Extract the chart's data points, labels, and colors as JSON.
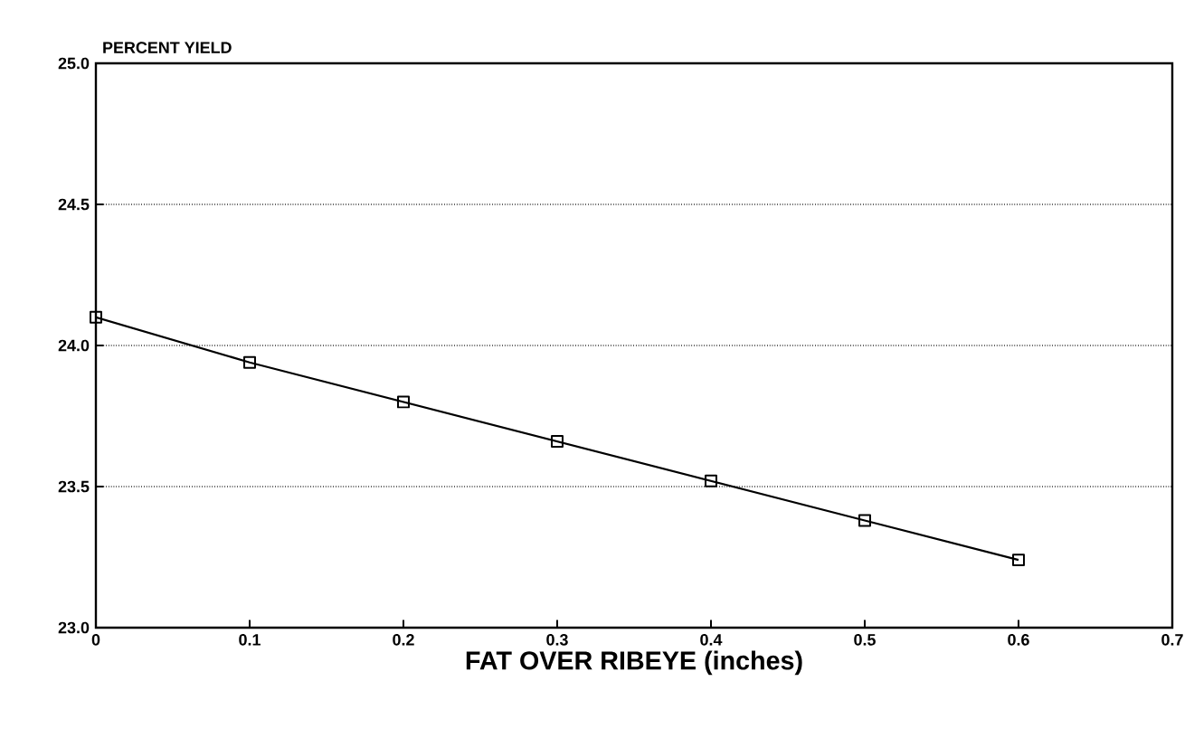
{
  "chart_data": {
    "type": "line",
    "ylabel": "PERCENT YIELD",
    "xlabel": "FAT OVER RIBEYE (inches)",
    "x": [
      0,
      0.1,
      0.2,
      0.3,
      0.4,
      0.5,
      0.6
    ],
    "series": [
      {
        "color": "#000000",
        "values": [
          24.1,
          23.94,
          23.8,
          23.66,
          23.52,
          23.38,
          23.24
        ]
      }
    ],
    "xlim": [
      0,
      0.7
    ],
    "xticks": [
      0,
      0.1,
      0.2,
      0.3,
      0.4,
      0.5,
      0.6,
      0.7
    ],
    "ylim": [
      23,
      25
    ],
    "yticks": [
      {
        "value": 23,
        "label": "23.0"
      },
      {
        "value": 23.5,
        "label": "23.5"
      },
      {
        "value": 24,
        "label": "24.0"
      },
      {
        "value": 24.5,
        "label": "24.5"
      },
      {
        "value": 25,
        "label": "25.0"
      }
    ],
    "grid": "y",
    "marker": "square",
    "line_style": "solid"
  }
}
